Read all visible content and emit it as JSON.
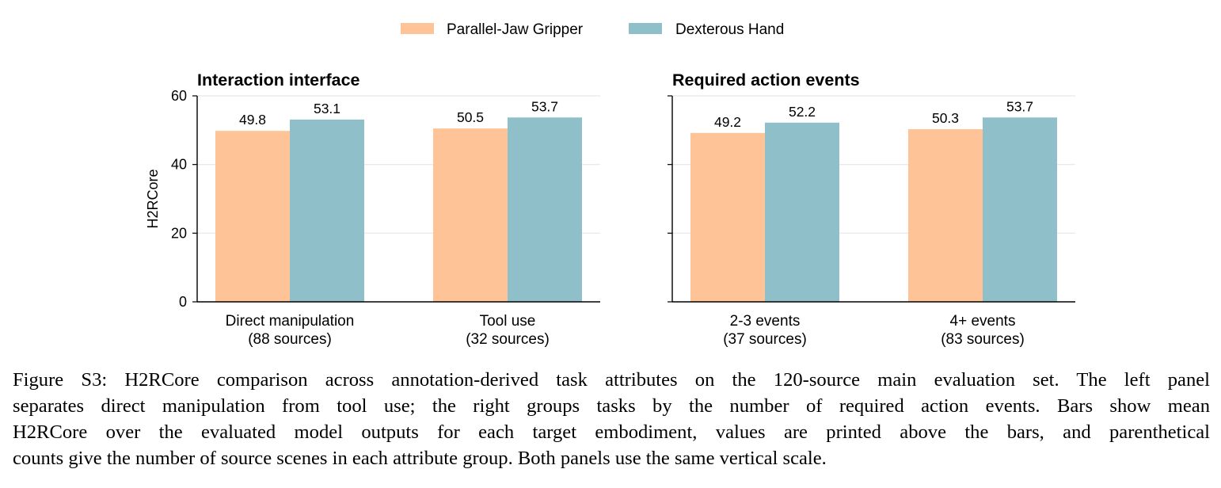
{
  "legend": {
    "items": [
      {
        "name": "Parallel-Jaw Gripper",
        "color": "#FEC497"
      },
      {
        "name": "Dexterous Hand",
        "color": "#8FBFC8"
      }
    ]
  },
  "chart_data": [
    {
      "type": "bar",
      "title": "Interaction interface",
      "ylabel": "H2RCore",
      "ylim": [
        0,
        60
      ],
      "yticks": [
        "0",
        "20",
        "40",
        "60"
      ],
      "grid": true,
      "categories": [
        "Direct manipulation\n(88 sources)",
        "Tool use\n(32 sources)"
      ],
      "series": [
        {
          "name": "Parallel-Jaw Gripper",
          "values": [
            49.8,
            50.5
          ],
          "labels": [
            "49.8",
            "50.5"
          ]
        },
        {
          "name": "Dexterous Hand",
          "values": [
            53.1,
            53.7
          ],
          "labels": [
            "53.1",
            "53.7"
          ]
        }
      ]
    },
    {
      "type": "bar",
      "title": "Required action events",
      "ylabel": "",
      "ylim": [
        0,
        60
      ],
      "yticks": [
        "",
        "",
        "",
        ""
      ],
      "grid": true,
      "categories": [
        "2-3 events\n(37 sources)",
        "4+ events\n(83 sources)"
      ],
      "series": [
        {
          "name": "Parallel-Jaw Gripper",
          "values": [
            49.2,
            50.3
          ],
          "labels": [
            "49.2",
            "50.3"
          ]
        },
        {
          "name": "Dexterous Hand",
          "values": [
            52.2,
            53.7
          ],
          "labels": [
            "52.2",
            "53.7"
          ]
        }
      ]
    }
  ],
  "caption": {
    "lines": [
      "Figure S3: H2RCore comparison across annotation-derived task attributes on the 120-source main evaluation set. The left panel",
      "separates direct manipulation from tool use; the right groups tasks by the number of required action events. Bars show mean",
      "H2RCore over the evaluated model outputs for each target embodiment, values are printed above the bars, and parenthetical",
      "counts give the number of source scenes in each attribute group. Both panels use the same vertical scale."
    ]
  }
}
